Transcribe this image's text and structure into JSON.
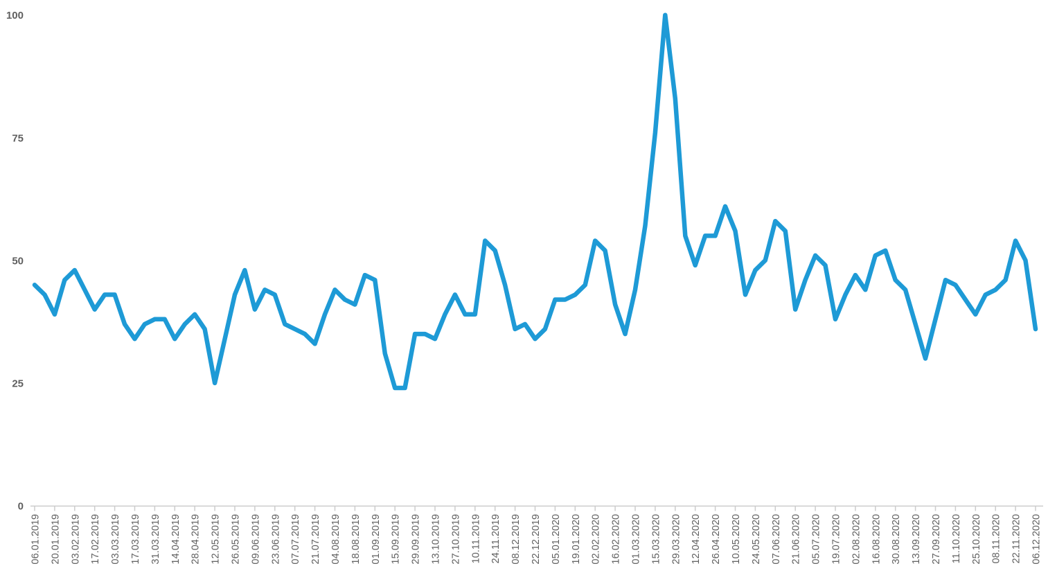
{
  "chart_data": {
    "type": "line",
    "title": "",
    "xlabel": "",
    "ylabel": "",
    "ylim": [
      0,
      100
    ],
    "yticks": [
      0,
      25,
      50,
      75,
      100
    ],
    "x_tick_every": 2,
    "x_tick_label_rotation": 90,
    "grid": "off",
    "legend": "none",
    "series_name": "search-interest-index",
    "x": [
      "06.01.2019",
      "13.01.2019",
      "20.01.2019",
      "27.01.2019",
      "03.02.2019",
      "10.02.2019",
      "17.02.2019",
      "24.02.2019",
      "03.03.2019",
      "10.03.2019",
      "17.03.2019",
      "24.03.2019",
      "31.03.2019",
      "07.04.2019",
      "14.04.2019",
      "21.04.2019",
      "28.04.2019",
      "05.05.2019",
      "12.05.2019",
      "19.05.2019",
      "26.05.2019",
      "02.06.2019",
      "09.06.2019",
      "16.06.2019",
      "23.06.2019",
      "30.06.2019",
      "07.07.2019",
      "14.07.2019",
      "21.07.2019",
      "28.07.2019",
      "04.08.2019",
      "11.08.2019",
      "18.08.2019",
      "25.08.2019",
      "01.09.2019",
      "08.09.2019",
      "15.09.2019",
      "22.09.2019",
      "29.09.2019",
      "06.10.2019",
      "13.10.2019",
      "20.10.2019",
      "27.10.2019",
      "03.11.2019",
      "10.11.2019",
      "17.11.2019",
      "24.11.2019",
      "01.12.2019",
      "08.12.2019",
      "15.12.2019",
      "22.12.2019",
      "29.12.2019",
      "05.01.2020",
      "12.01.2020",
      "19.01.2020",
      "26.01.2020",
      "02.02.2020",
      "09.02.2020",
      "16.02.2020",
      "23.02.2020",
      "01.03.2020",
      "08.03.2020",
      "15.03.2020",
      "22.03.2020",
      "29.03.2020",
      "05.04.2020",
      "12.04.2020",
      "19.04.2020",
      "26.04.2020",
      "03.05.2020",
      "10.05.2020",
      "17.05.2020",
      "24.05.2020",
      "31.05.2020",
      "07.06.2020",
      "14.06.2020",
      "21.06.2020",
      "28.06.2020",
      "05.07.2020",
      "12.07.2020",
      "19.07.2020",
      "26.07.2020",
      "02.08.2020",
      "09.08.2020",
      "16.08.2020",
      "23.08.2020",
      "30.08.2020",
      "06.09.2020",
      "13.09.2020",
      "20.09.2020",
      "27.09.2020",
      "04.10.2020",
      "11.10.2020",
      "18.10.2020",
      "25.10.2020",
      "01.11.2020",
      "08.11.2020",
      "15.11.2020",
      "22.11.2020",
      "29.11.2020",
      "06.12.2020"
    ],
    "values": [
      45,
      43,
      39,
      46,
      48,
      44,
      40,
      43,
      43,
      37,
      34,
      37,
      38,
      38,
      34,
      37,
      39,
      36,
      25,
      34,
      43,
      48,
      40,
      44,
      43,
      37,
      36,
      35,
      33,
      39,
      44,
      42,
      41,
      47,
      46,
      31,
      24,
      24,
      35,
      35,
      34,
      39,
      43,
      39,
      39,
      54,
      52,
      45,
      36,
      37,
      34,
      36,
      42,
      42,
      43,
      45,
      54,
      52,
      41,
      35,
      44,
      57,
      76,
      100,
      83,
      55,
      49,
      55,
      55,
      61,
      56,
      43,
      48,
      50,
      58,
      56,
      40,
      46,
      51,
      49,
      38,
      43,
      47,
      44,
      51,
      52,
      46,
      44,
      37,
      30,
      38,
      46,
      45,
      42,
      39,
      43,
      44,
      46,
      54,
      50,
      36
    ],
    "style": {
      "line_color": "#1e9ad6",
      "axis_color": "#cccccc",
      "label_color": "#5f5f5f",
      "background": "#ffffff"
    }
  }
}
